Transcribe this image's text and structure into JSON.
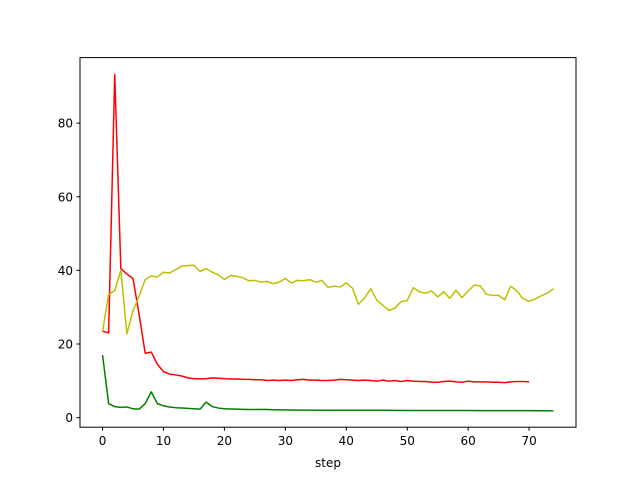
{
  "chart_data": {
    "type": "line",
    "title": "",
    "xlabel": "step",
    "ylabel": "",
    "xlim": [
      -3.7,
      77.7
    ],
    "ylim": [
      -2.6,
      97.8
    ],
    "xticks": [
      0,
      10,
      20,
      30,
      40,
      50,
      60,
      70
    ],
    "yticks": [
      0,
      20,
      40,
      60,
      80
    ],
    "grid": false,
    "series": [
      {
        "color": "#ff0000",
        "points": [
          [
            0,
            23.5
          ],
          [
            1,
            23
          ],
          [
            2,
            93.2
          ],
          [
            3,
            40.5
          ],
          [
            4,
            39
          ],
          [
            5,
            37.8
          ],
          [
            6,
            28
          ],
          [
            7,
            17.5
          ],
          [
            8,
            17.8
          ],
          [
            9,
            14.5
          ],
          [
            10,
            12.5
          ],
          [
            11,
            11.8
          ],
          [
            12,
            11.6
          ],
          [
            13,
            11.3
          ],
          [
            14,
            10.8
          ],
          [
            15,
            10.6
          ],
          [
            16,
            10.5
          ],
          [
            17,
            10.6
          ],
          [
            18,
            10.8
          ],
          [
            19,
            10.7
          ],
          [
            20,
            10.6
          ],
          [
            21,
            10.5
          ],
          [
            22,
            10.5
          ],
          [
            23,
            10.4
          ],
          [
            24,
            10.4
          ],
          [
            25,
            10.3
          ],
          [
            26,
            10.3
          ],
          [
            27,
            10.1
          ],
          [
            28,
            10.2
          ],
          [
            29,
            10.1
          ],
          [
            30,
            10.2
          ],
          [
            31,
            10.1
          ],
          [
            32,
            10.3
          ],
          [
            33,
            10.4
          ],
          [
            34,
            10.2
          ],
          [
            35,
            10.2
          ],
          [
            36,
            10.1
          ],
          [
            37,
            10.1
          ],
          [
            38,
            10.2
          ],
          [
            39,
            10.4
          ],
          [
            40,
            10.3
          ],
          [
            41,
            10.2
          ],
          [
            42,
            10.1
          ],
          [
            43,
            10.2
          ],
          [
            44,
            10.1
          ],
          [
            45,
            9.9
          ],
          [
            46,
            10.2
          ],
          [
            47,
            9.9
          ],
          [
            48,
            10.1
          ],
          [
            49,
            9.8
          ],
          [
            50,
            10.1
          ],
          [
            51,
            9.9
          ],
          [
            52,
            9.8
          ],
          [
            53,
            9.8
          ],
          [
            54,
            9.6
          ],
          [
            55,
            9.6
          ],
          [
            56,
            9.8
          ],
          [
            57,
            9.9
          ],
          [
            58,
            9.7
          ],
          [
            59,
            9.6
          ],
          [
            60,
            9.9
          ],
          [
            61,
            9.7
          ],
          [
            62,
            9.7
          ],
          [
            63,
            9.7
          ],
          [
            64,
            9.6
          ],
          [
            65,
            9.6
          ],
          [
            66,
            9.5
          ],
          [
            67,
            9.7
          ],
          [
            68,
            9.8
          ],
          [
            69,
            9.8
          ],
          [
            70,
            9.7
          ]
        ]
      },
      {
        "color": "#bfbf00",
        "points": [
          [
            0,
            23.5
          ],
          [
            1,
            33.5
          ],
          [
            2,
            34.5
          ],
          [
            3,
            40
          ],
          [
            4,
            22.8
          ],
          [
            5,
            29
          ],
          [
            6,
            33
          ],
          [
            7,
            37.5
          ],
          [
            8,
            38.5
          ],
          [
            9,
            38.2
          ],
          [
            10,
            39.5
          ],
          [
            11,
            39.3
          ],
          [
            12,
            40.2
          ],
          [
            13,
            41.2
          ],
          [
            14,
            41.3
          ],
          [
            15,
            41.4
          ],
          [
            16,
            39.7
          ],
          [
            17,
            40.5
          ],
          [
            18,
            39.5
          ],
          [
            19,
            38.8
          ],
          [
            20,
            37.5
          ],
          [
            21,
            38.6
          ],
          [
            22,
            38.4
          ],
          [
            23,
            38
          ],
          [
            24,
            37.2
          ],
          [
            25,
            37.3
          ],
          [
            26,
            36.8
          ],
          [
            27,
            37
          ],
          [
            28,
            36.4
          ],
          [
            29,
            36.8
          ],
          [
            30,
            37.8
          ],
          [
            31,
            36.6
          ],
          [
            32,
            37.3
          ],
          [
            33,
            37.2
          ],
          [
            34,
            37.5
          ],
          [
            35,
            36.8
          ],
          [
            36,
            37.3
          ],
          [
            37,
            35.4
          ],
          [
            38,
            35.7
          ],
          [
            39,
            35.5
          ],
          [
            40,
            36.6
          ],
          [
            41,
            35.2
          ],
          [
            42,
            30.8
          ],
          [
            43,
            32.5
          ],
          [
            44,
            35
          ],
          [
            45,
            31.9
          ],
          [
            46,
            30.5
          ],
          [
            47,
            29.1
          ],
          [
            48,
            29.8
          ],
          [
            49,
            31.5
          ],
          [
            50,
            31.8
          ],
          [
            51,
            35.3
          ],
          [
            52,
            34.2
          ],
          [
            53,
            33.8
          ],
          [
            54,
            34.4
          ],
          [
            55,
            32.8
          ],
          [
            56,
            34.2
          ],
          [
            57,
            32.4
          ],
          [
            58,
            34.6
          ],
          [
            59,
            32.6
          ],
          [
            60,
            34.4
          ],
          [
            61,
            36
          ],
          [
            62,
            35.8
          ],
          [
            63,
            33.5
          ],
          [
            64,
            33.2
          ],
          [
            65,
            33.2
          ],
          [
            66,
            32
          ],
          [
            67,
            35.7
          ],
          [
            68,
            34.4
          ],
          [
            69,
            32.3
          ],
          [
            70,
            31.6
          ],
          [
            71,
            32.2
          ],
          [
            72,
            33.1
          ],
          [
            73,
            33.8
          ],
          [
            74,
            35
          ]
        ]
      },
      {
        "color": "#008000",
        "points": [
          [
            0,
            17
          ],
          [
            1,
            3.8
          ],
          [
            2,
            3
          ],
          [
            3,
            2.8
          ],
          [
            4,
            2.9
          ],
          [
            5,
            2.4
          ],
          [
            6,
            2.3
          ],
          [
            7,
            3.8
          ],
          [
            8,
            7
          ],
          [
            9,
            3.8
          ],
          [
            10,
            3.2
          ],
          [
            11,
            2.9
          ],
          [
            12,
            2.7
          ],
          [
            13,
            2.6
          ],
          [
            14,
            2.5
          ],
          [
            15,
            2.4
          ],
          [
            16,
            2.3
          ],
          [
            17,
            4.2
          ],
          [
            18,
            3
          ],
          [
            19,
            2.6
          ],
          [
            20,
            2.4
          ],
          [
            21,
            2.35
          ],
          [
            22,
            2.3
          ],
          [
            23,
            2.25
          ],
          [
            24,
            2.2
          ],
          [
            25,
            2.2
          ],
          [
            26,
            2.25
          ],
          [
            27,
            2.2
          ],
          [
            28,
            2.15
          ],
          [
            29,
            2.1
          ],
          [
            30,
            2.1
          ],
          [
            32,
            2.05
          ],
          [
            34,
            2.05
          ],
          [
            36,
            2
          ],
          [
            40,
            2
          ],
          [
            45,
            2
          ],
          [
            50,
            1.95
          ],
          [
            55,
            1.95
          ],
          [
            60,
            1.95
          ],
          [
            62,
            1.9
          ],
          [
            65,
            1.9
          ],
          [
            70,
            1.9
          ],
          [
            74,
            1.85
          ]
        ]
      }
    ]
  }
}
